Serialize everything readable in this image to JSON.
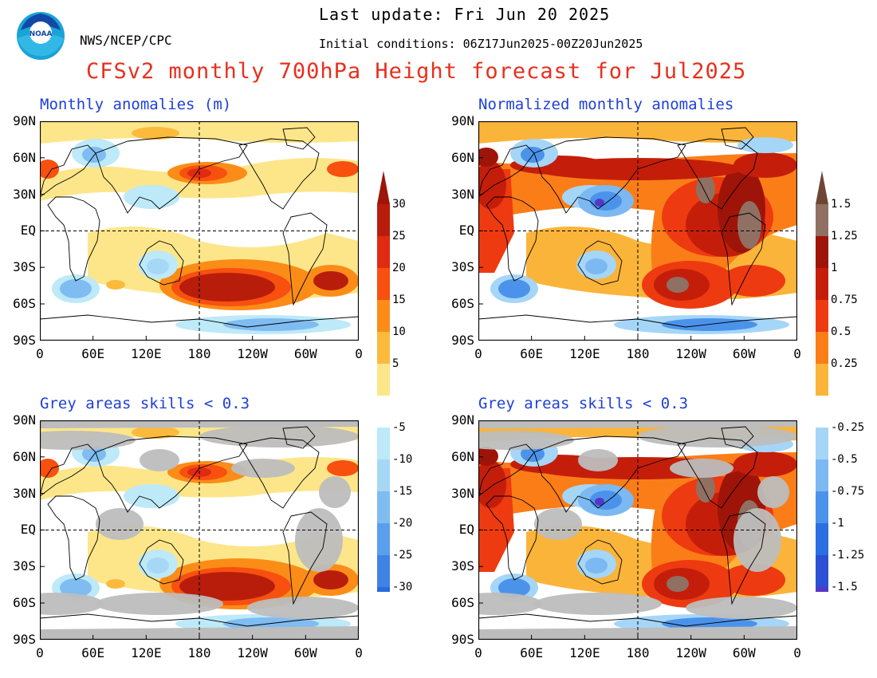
{
  "header": {
    "last_update": "Last update: Fri Jun 20 2025",
    "initial_conditions": "Initial conditions: 06Z17Jun2025-00Z20Jun2025",
    "org": "NWS/NCEP/CPC",
    "title": "CFSv2 monthly 700hPa Height forecast for Jul2025",
    "logo_text": "NOAA"
  },
  "panels": [
    {
      "title": "Monthly anomalies (m)",
      "variant": "raw",
      "grey": false
    },
    {
      "title": "Normalized monthly anomalies",
      "variant": "norm",
      "grey": false
    },
    {
      "title": "Grey areas skills < 0.3",
      "variant": "raw",
      "grey": true
    },
    {
      "title": "Grey areas skills < 0.3",
      "variant": "norm",
      "grey": true
    }
  ],
  "axes": {
    "lat_labels": [
      "90N",
      "60N",
      "30N",
      "EQ",
      "30S",
      "60S",
      "90S"
    ],
    "lon_labels": [
      "0",
      "60E",
      "120E",
      "180",
      "120W",
      "60W",
      "0"
    ]
  },
  "colorbar_left": {
    "labels": [
      "30",
      "25",
      "20",
      "15",
      "10",
      "5",
      "-5",
      "-10",
      "-15",
      "-20",
      "-25",
      "-30"
    ],
    "pos_colors": [
      "#b81d0c",
      "#e02a12",
      "#f7500f",
      "#fb8c18",
      "#fcba3d",
      "#fde68a"
    ],
    "neg_colors": [
      "#bde9f8",
      "#a6d8f6",
      "#7fbcf2",
      "#5a9fec",
      "#3f83e4",
      "#2a6bdc"
    ],
    "top_arrow_color": "#9c150a",
    "bottom_arrow_color": "#1c5ad4"
  },
  "colorbar_right": {
    "labels": [
      "1.5",
      "1.25",
      "1",
      "0.75",
      "0.5",
      "0.25",
      "-0.25",
      "-0.5",
      "-0.75",
      "-1",
      "-1.25",
      "-1.5"
    ],
    "pos_colors": [
      "#8f7062",
      "#9e1408",
      "#c41e0b",
      "#ee3a10",
      "#fb7d18",
      "#fbb43a"
    ],
    "neg_colors": [
      "#a5d6f7",
      "#7cb9f2",
      "#4b93ea",
      "#2b6fe0",
      "#2a50d4",
      "#5538c6"
    ],
    "top_arrow_color": "#6e4636",
    "bottom_arrow_color": "#2a0fa6"
  }
}
